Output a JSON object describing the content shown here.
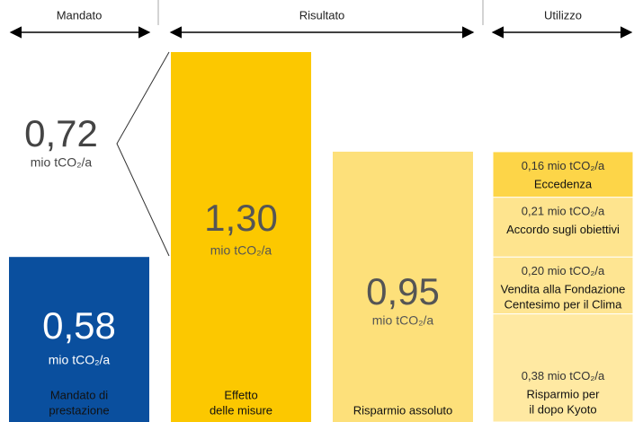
{
  "chart_data": {
    "type": "infographic",
    "unit": "mio tCO₂/a",
    "sections": [
      "Mandato",
      "Risultato",
      "Utilizzo"
    ],
    "mandate": {
      "value": 0.58,
      "value_label": "0,58",
      "label": [
        "Mandato di",
        "prestazione"
      ],
      "color": "#0a4f9e",
      "extra": {
        "value": 0.72,
        "value_label": "0,72"
      }
    },
    "effect": {
      "value": 1.3,
      "value_label": "1,30",
      "label": [
        "Effetto",
        "delle misure"
      ],
      "color": "#fcc800"
    },
    "savings": {
      "value": 0.95,
      "value_label": "0,95",
      "label": [
        "Risparmio assoluto"
      ],
      "color": "#fde07a"
    },
    "usage": [
      {
        "value": 0.16,
        "value_label": "0,16",
        "label": [
          "Eccedenza"
        ],
        "color": "#fdd548"
      },
      {
        "value": 0.21,
        "value_label": "0,21",
        "label": [
          "Accordo sugli obiettivi"
        ],
        "color": "#fee48e"
      },
      {
        "value": 0.2,
        "value_label": "0,20",
        "label": [
          "Vendita alla Fondazione",
          "Centesimo per il Clima"
        ],
        "color": "#fee592"
      },
      {
        "value": 0.38,
        "value_label": "0,38",
        "label": [
          "Risparmio per",
          "il dopo Kyoto"
        ],
        "color": "#ffe9a2"
      }
    ]
  }
}
